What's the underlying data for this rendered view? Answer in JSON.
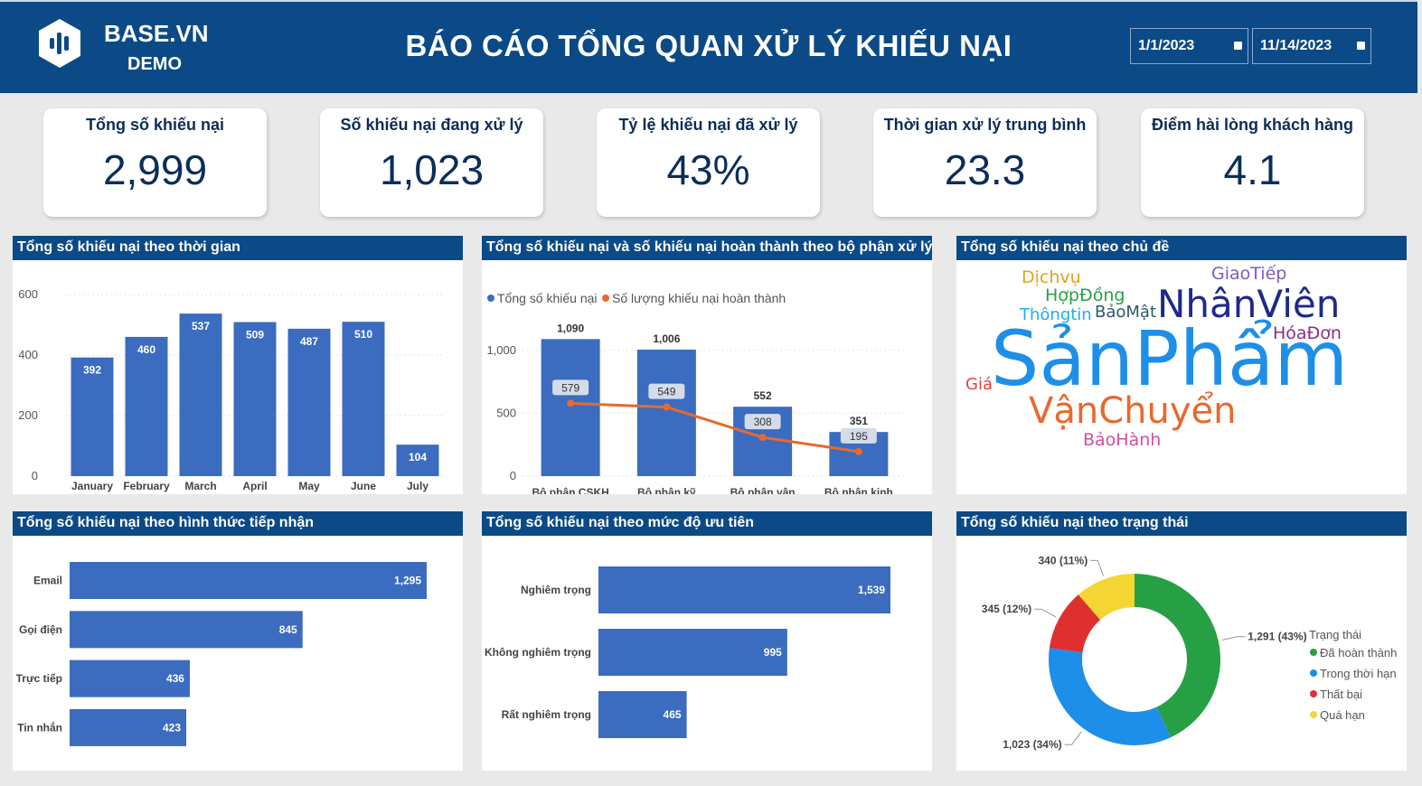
{
  "header": {
    "brand": "BASE.VN",
    "subtitle": "DEMO",
    "title": "BÁO CÁO TỔNG QUAN XỬ LÝ KHIẾU NẠI",
    "date_from": "1/1/2023",
    "date_to": "11/14/2023",
    "color": "#0b4a86"
  },
  "kpis": [
    {
      "label": "Tổng số khiếu nại",
      "value": "2,999"
    },
    {
      "label": "Số khiếu nại đang xử lý",
      "value": "1,023"
    },
    {
      "label": "Tỷ lệ khiếu nại đã xử lý",
      "value": "43%"
    },
    {
      "label": "Thời gian xử lý trung bình",
      "value": "23.3"
    },
    {
      "label": "Điểm hài lòng khách hàng",
      "value": "4.1"
    }
  ],
  "panels": {
    "time": "Tổng số khiếu nại theo thời gian",
    "dept": "Tổng số khiếu nại và số khiếu nại hoàn thành theo bộ phận xử lý",
    "topic": "Tổng số khiếu nại theo chủ đề",
    "channel": "Tổng số khiếu nại theo hình thức tiếp nhận",
    "priority": "Tổng số khiếu nại theo mức độ ưu tiên",
    "status": "Tổng số khiếu nại theo trạng thái"
  },
  "chart_data": [
    {
      "type": "bar",
      "categories": [
        "January",
        "February",
        "March",
        "April",
        "May",
        "June",
        "July"
      ],
      "axis_year": "2023",
      "values": [
        392,
        460,
        537,
        509,
        487,
        510,
        104
      ],
      "ylim": [
        0,
        600
      ],
      "yticks": [
        "0",
        "200",
        "400",
        "600"
      ],
      "color": "#3b6cc0"
    },
    {
      "type": "bar",
      "categories": [
        "Bộ phận CSKH",
        "Bộ phận kỹ thuật",
        "Bộ phận vận chuyển",
        "Bộ phận kinh doanh"
      ],
      "series": [
        {
          "name": "Tổng số khiếu nại",
          "values": [
            1090,
            1006,
            552,
            351
          ],
          "labels": [
            "1,090",
            "1,006",
            "552",
            "351"
          ],
          "color": "#3b6cc0"
        },
        {
          "name": "Số lượng khiếu nại hoàn thành",
          "values": [
            579,
            549,
            308,
            195
          ],
          "labels": [
            "579",
            "549",
            "308",
            "195"
          ],
          "color": "#e8692e"
        }
      ],
      "ylim": [
        0,
        1200
      ],
      "yticks": [
        "0",
        "500",
        "1,000"
      ]
    },
    {
      "type": "wordcloud",
      "words": [
        {
          "text": "SảnPhẩm",
          "color": "#1e8fe8"
        },
        {
          "text": "NhânViên",
          "color": "#1d2a8a"
        },
        {
          "text": "VậnChuyển",
          "color": "#e8692e"
        },
        {
          "text": "GiaoTiếp",
          "color": "#7b5cc4"
        },
        {
          "text": "Dịchvụ",
          "color": "#e1a31c"
        },
        {
          "text": "HợpĐồng",
          "color": "#27a045"
        },
        {
          "text": "Thôngtin",
          "color": "#1ab0e8"
        },
        {
          "text": "BảoMật",
          "color": "#2a5a6a"
        },
        {
          "text": "HóaĐơn",
          "color": "#8a2e8a"
        },
        {
          "text": "Giá",
          "color": "#e04444"
        },
        {
          "text": "BảoHành",
          "color": "#d4509c"
        }
      ]
    },
    {
      "type": "bar",
      "orientation": "horizontal",
      "categories": [
        "Email",
        "Gọi điện",
        "Trực tiếp",
        "Tin nhắn"
      ],
      "values": [
        1295,
        845,
        436,
        423
      ],
      "labels": [
        "1,295",
        "845",
        "436",
        "423"
      ],
      "color": "#3b6cc0"
    },
    {
      "type": "bar",
      "orientation": "horizontal",
      "categories": [
        "Nghiêm trọng",
        "Không nghiêm trọng",
        "Rất nghiêm trọng"
      ],
      "values": [
        1539,
        995,
        465
      ],
      "labels": [
        "1,539",
        "995",
        "465"
      ],
      "color": "#3b6cc0"
    },
    {
      "type": "pie",
      "donut": true,
      "legend_title": "Trạng thái",
      "slices": [
        {
          "name": "Đã hoàn thành",
          "value": 1291,
          "label": "1,291 (43%)",
          "color": "#27a045"
        },
        {
          "name": "Trong thời hạn",
          "value": 1023,
          "label": "1,023 (34%)",
          "color": "#1e8fe8"
        },
        {
          "name": "Thất bại",
          "value": 345,
          "label": "345 (12%)",
          "color": "#e02f2f"
        },
        {
          "name": "Quá hạn",
          "value": 340,
          "label": "340 (11%)",
          "color": "#f5d532"
        }
      ]
    }
  ]
}
